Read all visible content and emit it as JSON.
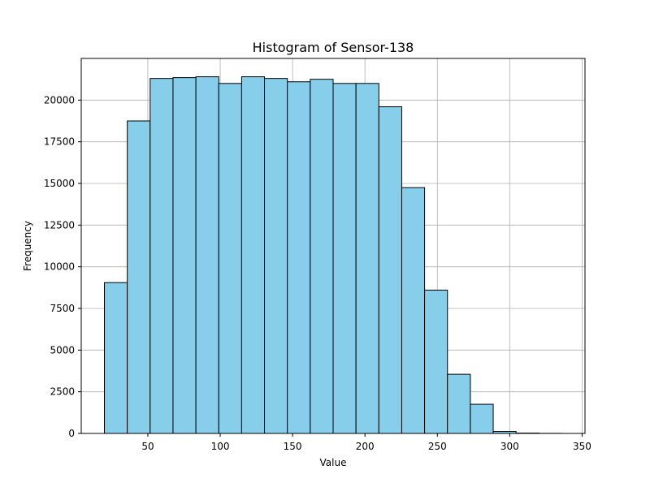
{
  "chart_data": {
    "type": "bar",
    "title": "Histogram of Sensor-138",
    "xlabel": "Value",
    "ylabel": "Frequency",
    "xlim": [
      4,
      352
    ],
    "ylim": [
      0,
      22500
    ],
    "xticks": [
      50,
      100,
      150,
      200,
      250,
      300,
      350
    ],
    "yticks": [
      0,
      2500,
      5000,
      7500,
      10000,
      12500,
      15000,
      17500,
      20000
    ],
    "grid": true,
    "bar_color": "#87ceeb",
    "edge_color": "#000000",
    "bins": [
      {
        "start": 20.0,
        "end": 35.8,
        "count": 9050
      },
      {
        "start": 35.8,
        "end": 51.6,
        "count": 18750
      },
      {
        "start": 51.6,
        "end": 67.4,
        "count": 21300
      },
      {
        "start": 67.4,
        "end": 83.2,
        "count": 21350
      },
      {
        "start": 83.2,
        "end": 99.0,
        "count": 21400
      },
      {
        "start": 99.0,
        "end": 114.8,
        "count": 21000
      },
      {
        "start": 114.8,
        "end": 130.6,
        "count": 21400
      },
      {
        "start": 130.6,
        "end": 146.4,
        "count": 21300
      },
      {
        "start": 146.4,
        "end": 162.2,
        "count": 21100
      },
      {
        "start": 162.2,
        "end": 178.0,
        "count": 21250
      },
      {
        "start": 178.0,
        "end": 193.8,
        "count": 21000
      },
      {
        "start": 193.8,
        "end": 209.6,
        "count": 21000
      },
      {
        "start": 209.6,
        "end": 225.4,
        "count": 19600
      },
      {
        "start": 225.4,
        "end": 241.2,
        "count": 14750
      },
      {
        "start": 241.2,
        "end": 257.0,
        "count": 8600
      },
      {
        "start": 257.0,
        "end": 272.8,
        "count": 3550
      },
      {
        "start": 272.8,
        "end": 288.6,
        "count": 1750
      },
      {
        "start": 288.6,
        "end": 304.4,
        "count": 120
      },
      {
        "start": 304.4,
        "end": 320.2,
        "count": 20
      },
      {
        "start": 320.2,
        "end": 336.0,
        "count": 5
      }
    ]
  }
}
